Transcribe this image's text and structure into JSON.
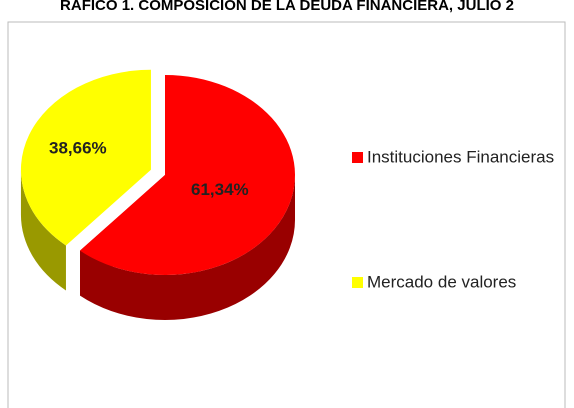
{
  "chart_data": {
    "type": "pie",
    "title": "RAFICO 1. COMPOSICIÓN DE LA DEUDA FINANCIERA, JULIO 2",
    "categories": [
      "Instituciones Financieras",
      "Mercado de valores"
    ],
    "values": [
      61.34,
      38.66
    ],
    "value_labels": [
      "61,34%",
      "38,66%"
    ],
    "colors": [
      "#ff0000",
      "#ffff00"
    ],
    "legend": "right"
  }
}
